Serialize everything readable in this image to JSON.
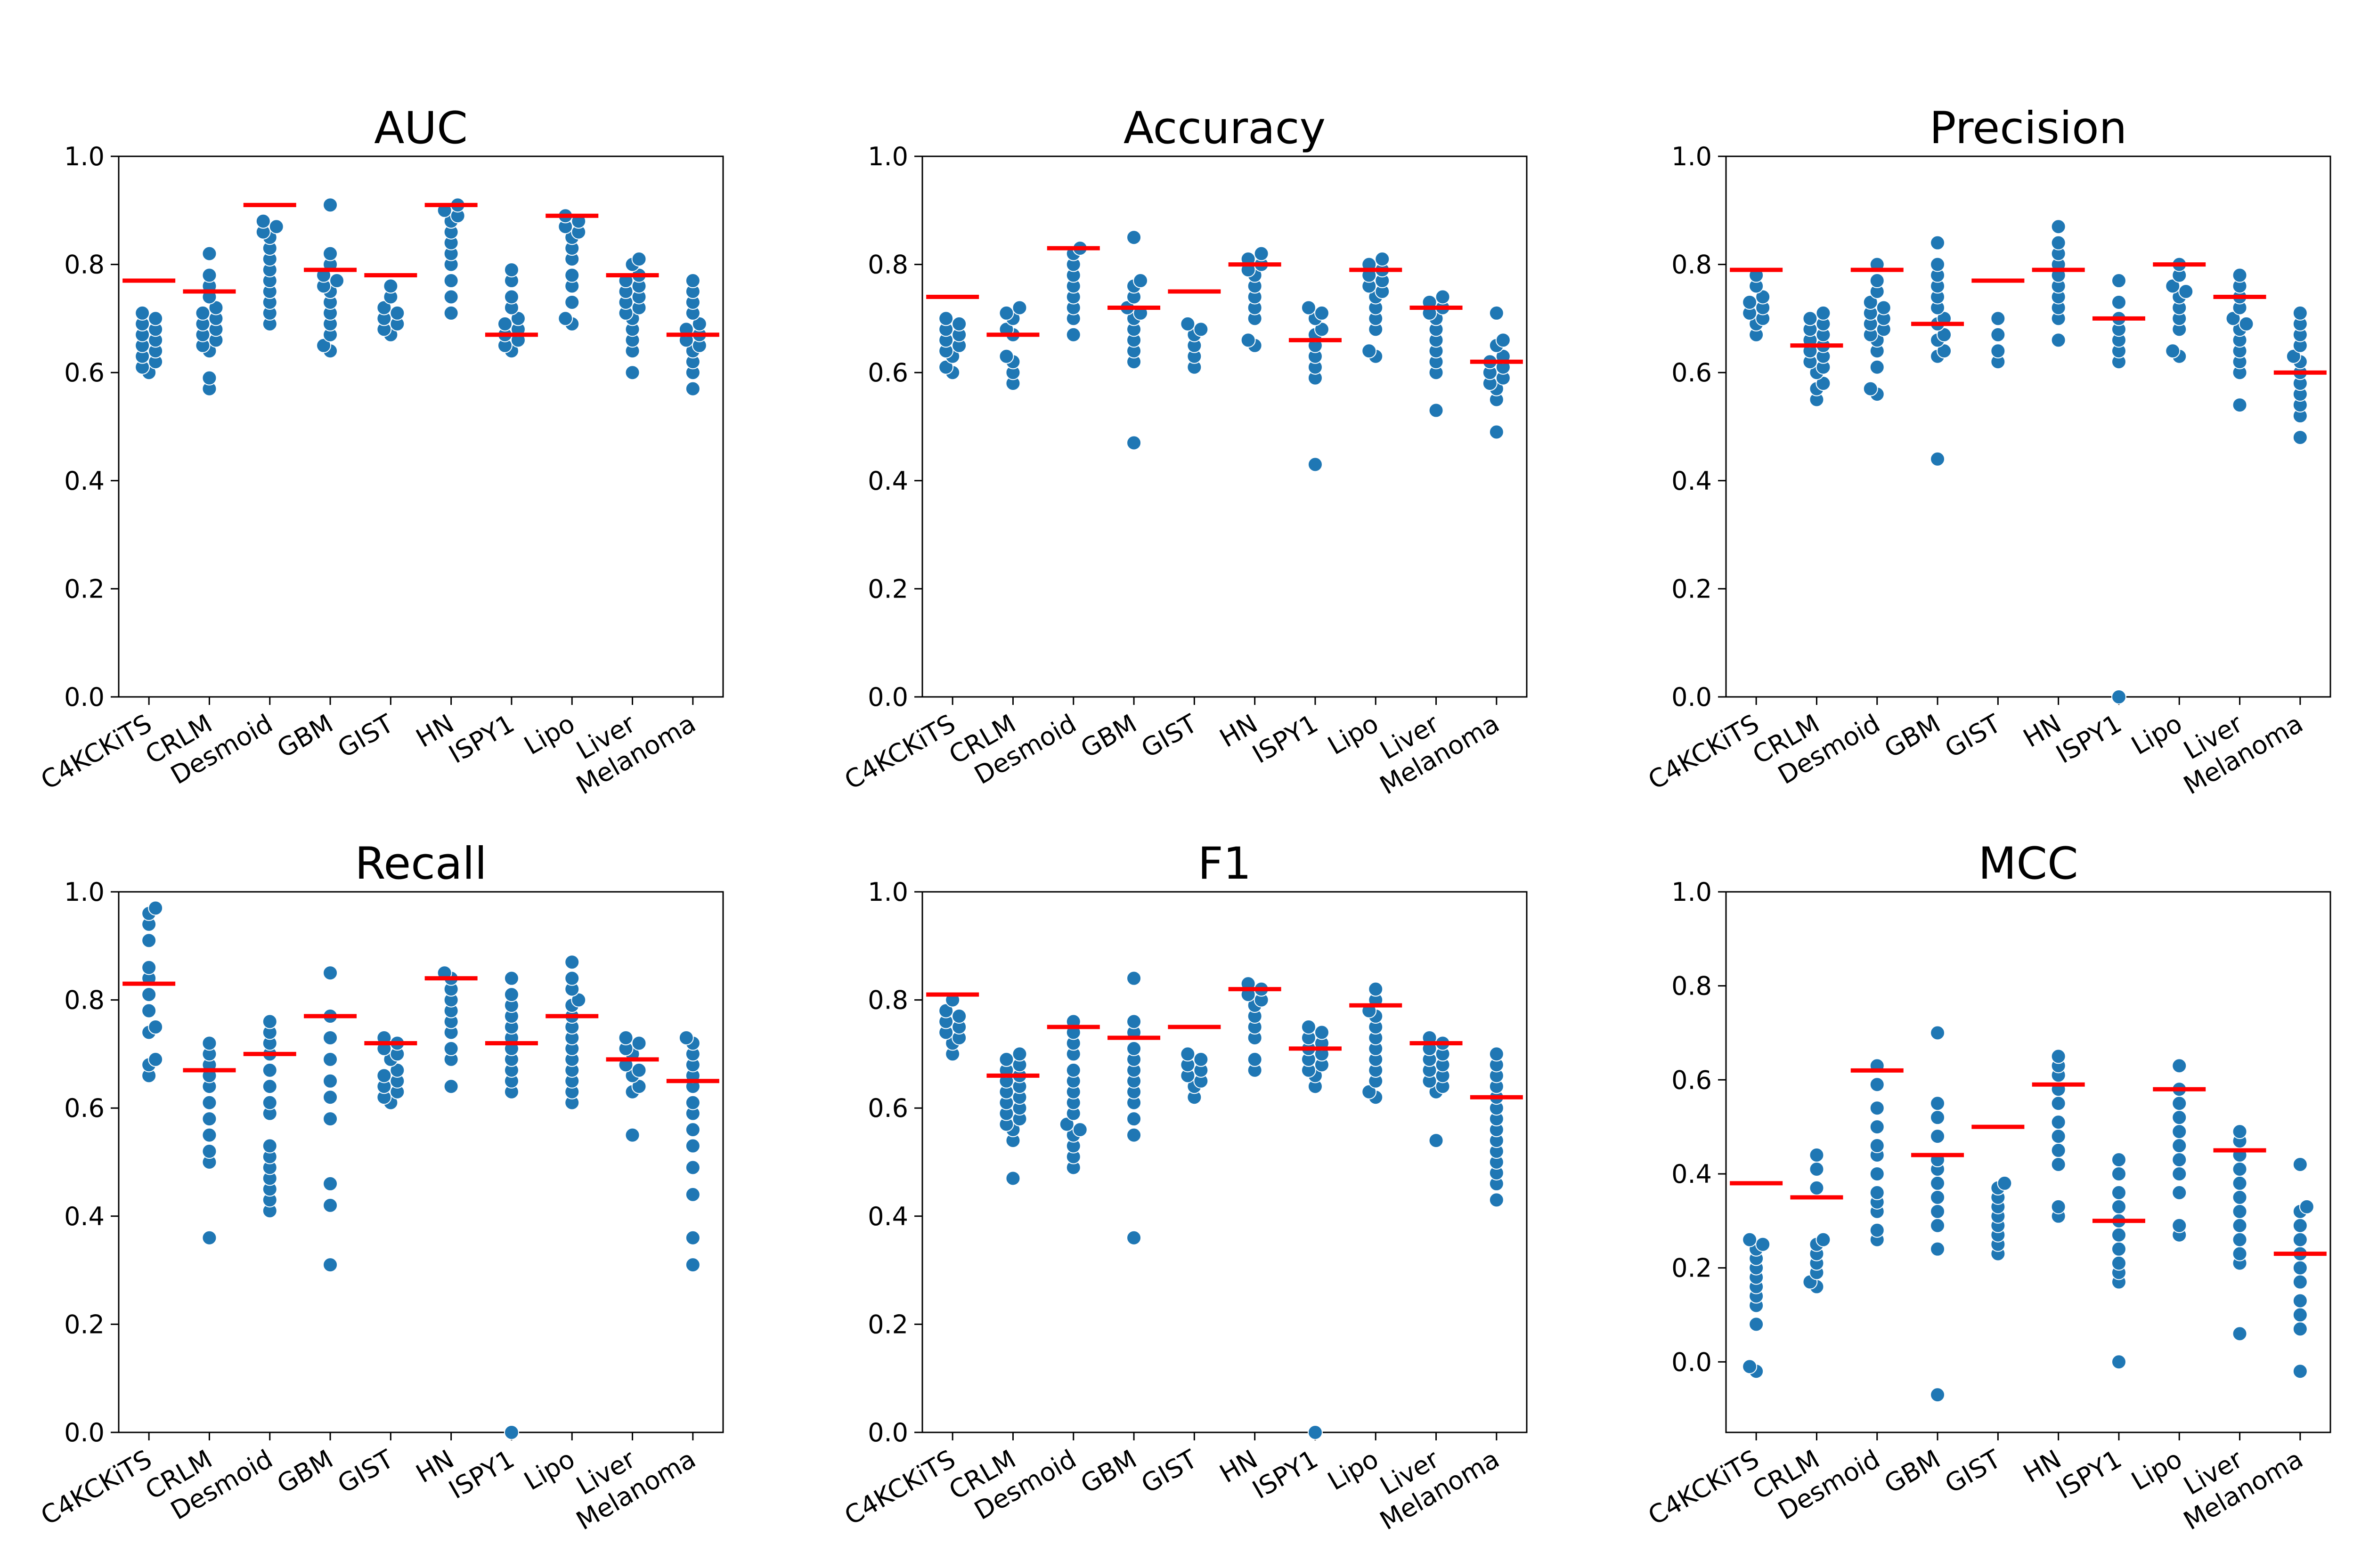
{
  "colors": {
    "points": "#1f77b4",
    "mean_line": "#ff0000",
    "axis": "#000000",
    "background": "#ffffff"
  },
  "chart_data": [
    {
      "type": "scatter",
      "title": "AUC",
      "categories": [
        "C4KCKiTS",
        "CRLM",
        "Desmoid",
        "GBM",
        "GIST",
        "HN",
        "ISPY1",
        "Lipo",
        "Liver",
        "Melanoma"
      ],
      "ylim": [
        0.0,
        1.0
      ],
      "yticks": [
        "0.0",
        "0.2",
        "0.4",
        "0.6",
        "0.8",
        "1.0"
      ],
      "grid": false,
      "points": [
        [
          0.6,
          0.61,
          0.62,
          0.63,
          0.64,
          0.65,
          0.66,
          0.67,
          0.68,
          0.69,
          0.7,
          0.71
        ],
        [
          0.57,
          0.59,
          0.64,
          0.65,
          0.66,
          0.67,
          0.68,
          0.69,
          0.7,
          0.71,
          0.72,
          0.74,
          0.76,
          0.78,
          0.82
        ],
        [
          0.69,
          0.71,
          0.73,
          0.75,
          0.77,
          0.79,
          0.81,
          0.83,
          0.85,
          0.86,
          0.87,
          0.88
        ],
        [
          0.64,
          0.65,
          0.67,
          0.69,
          0.71,
          0.73,
          0.75,
          0.76,
          0.77,
          0.78,
          0.8,
          0.82,
          0.91
        ],
        [
          0.67,
          0.68,
          0.69,
          0.7,
          0.71,
          0.72,
          0.74,
          0.76
        ],
        [
          0.71,
          0.74,
          0.77,
          0.8,
          0.82,
          0.84,
          0.86,
          0.88,
          0.89,
          0.9,
          0.91
        ],
        [
          0.64,
          0.65,
          0.66,
          0.67,
          0.68,
          0.69,
          0.7,
          0.72,
          0.74,
          0.77,
          0.79
        ],
        [
          0.69,
          0.7,
          0.73,
          0.76,
          0.78,
          0.81,
          0.83,
          0.85,
          0.86,
          0.87,
          0.88,
          0.89
        ],
        [
          0.6,
          0.64,
          0.66,
          0.68,
          0.7,
          0.71,
          0.72,
          0.73,
          0.74,
          0.75,
          0.76,
          0.77,
          0.78,
          0.8,
          0.81
        ],
        [
          0.57,
          0.6,
          0.62,
          0.64,
          0.65,
          0.66,
          0.67,
          0.68,
          0.69,
          0.71,
          0.73,
          0.75,
          0.77
        ]
      ],
      "means": [
        0.77,
        0.75,
        0.91,
        0.79,
        0.78,
        0.91,
        0.67,
        0.89,
        0.78,
        0.67
      ]
    },
    {
      "type": "scatter",
      "title": "Accuracy",
      "categories": [
        "C4KCKiTS",
        "CRLM",
        "Desmoid",
        "GBM",
        "GIST",
        "HN",
        "ISPY1",
        "Lipo",
        "Liver",
        "Melanoma"
      ],
      "ylim": [
        0.0,
        1.0
      ],
      "yticks": [
        "0.0",
        "0.2",
        "0.4",
        "0.6",
        "0.8",
        "1.0"
      ],
      "grid": false,
      "points": [
        [
          0.6,
          0.61,
          0.63,
          0.64,
          0.65,
          0.66,
          0.67,
          0.68,
          0.69,
          0.7
        ],
        [
          0.58,
          0.6,
          0.62,
          0.63,
          0.67,
          0.68,
          0.7,
          0.71,
          0.72
        ],
        [
          0.67,
          0.7,
          0.72,
          0.74,
          0.76,
          0.78,
          0.8,
          0.82,
          0.83
        ],
        [
          0.47,
          0.62,
          0.64,
          0.66,
          0.68,
          0.7,
          0.71,
          0.72,
          0.74,
          0.76,
          0.77,
          0.85
        ],
        [
          0.61,
          0.63,
          0.65,
          0.67,
          0.68,
          0.69
        ],
        [
          0.65,
          0.66,
          0.7,
          0.72,
          0.74,
          0.76,
          0.78,
          0.79,
          0.8,
          0.81,
          0.82
        ],
        [
          0.43,
          0.59,
          0.61,
          0.63,
          0.65,
          0.67,
          0.68,
          0.7,
          0.71,
          0.72
        ],
        [
          0.63,
          0.64,
          0.68,
          0.7,
          0.72,
          0.74,
          0.75,
          0.76,
          0.77,
          0.78,
          0.79,
          0.8,
          0.81
        ],
        [
          0.53,
          0.6,
          0.62,
          0.64,
          0.66,
          0.68,
          0.7,
          0.71,
          0.72,
          0.73,
          0.74
        ],
        [
          0.49,
          0.55,
          0.57,
          0.58,
          0.59,
          0.6,
          0.61,
          0.62,
          0.63,
          0.65,
          0.66,
          0.71
        ]
      ],
      "means": [
        0.74,
        0.67,
        0.83,
        0.72,
        0.75,
        0.8,
        0.66,
        0.79,
        0.72,
        0.62
      ]
    },
    {
      "type": "scatter",
      "title": "Precision",
      "categories": [
        "C4KCKiTS",
        "CRLM",
        "Desmoid",
        "GBM",
        "GIST",
        "HN",
        "ISPY1",
        "Lipo",
        "Liver",
        "Melanoma"
      ],
      "ylim": [
        0.0,
        1.0
      ],
      "yticks": [
        "0.0",
        "0.2",
        "0.4",
        "0.6",
        "0.8",
        "1.0"
      ],
      "grid": false,
      "points": [
        [
          0.67,
          0.69,
          0.7,
          0.71,
          0.72,
          0.73,
          0.74,
          0.76,
          0.78
        ],
        [
          0.55,
          0.57,
          0.58,
          0.6,
          0.61,
          0.62,
          0.63,
          0.64,
          0.65,
          0.66,
          0.67,
          0.68,
          0.69,
          0.7,
          0.71
        ],
        [
          0.56,
          0.57,
          0.61,
          0.64,
          0.66,
          0.67,
          0.68,
          0.69,
          0.7,
          0.71,
          0.72,
          0.73,
          0.75,
          0.77,
          0.8
        ],
        [
          0.44,
          0.63,
          0.64,
          0.66,
          0.67,
          0.69,
          0.7,
          0.72,
          0.74,
          0.76,
          0.78,
          0.8,
          0.84
        ],
        [
          0.62,
          0.64,
          0.67,
          0.7
        ],
        [
          0.66,
          0.7,
          0.72,
          0.74,
          0.76,
          0.78,
          0.8,
          0.82,
          0.84,
          0.87
        ],
        [
          0.0,
          0.62,
          0.64,
          0.66,
          0.68,
          0.7,
          0.73,
          0.77
        ],
        [
          0.63,
          0.64,
          0.68,
          0.7,
          0.72,
          0.74,
          0.75,
          0.76,
          0.78,
          0.8
        ],
        [
          0.54,
          0.6,
          0.62,
          0.64,
          0.66,
          0.68,
          0.69,
          0.7,
          0.72,
          0.74,
          0.76,
          0.78
        ],
        [
          0.48,
          0.52,
          0.54,
          0.56,
          0.58,
          0.6,
          0.62,
          0.63,
          0.65,
          0.67,
          0.69,
          0.71
        ]
      ],
      "means": [
        0.79,
        0.65,
        0.79,
        0.69,
        0.77,
        0.79,
        0.7,
        0.8,
        0.74,
        0.6
      ]
    },
    {
      "type": "scatter",
      "title": "Recall",
      "categories": [
        "C4KCKiTS",
        "CRLM",
        "Desmoid",
        "GBM",
        "GIST",
        "HN",
        "ISPY1",
        "Lipo",
        "Liver",
        "Melanoma"
      ],
      "ylim": [
        0.0,
        1.0
      ],
      "yticks": [
        "0.0",
        "0.2",
        "0.4",
        "0.6",
        "0.8",
        "1.0"
      ],
      "grid": false,
      "points": [
        [
          0.66,
          0.68,
          0.69,
          0.74,
          0.75,
          0.78,
          0.81,
          0.84,
          0.86,
          0.91,
          0.94,
          0.96,
          0.97
        ],
        [
          0.36,
          0.5,
          0.52,
          0.55,
          0.58,
          0.61,
          0.64,
          0.66,
          0.68,
          0.7,
          0.72
        ],
        [
          0.41,
          0.43,
          0.45,
          0.47,
          0.49,
          0.51,
          0.53,
          0.59,
          0.61,
          0.64,
          0.67,
          0.7,
          0.72,
          0.74,
          0.76
        ],
        [
          0.31,
          0.42,
          0.46,
          0.58,
          0.62,
          0.65,
          0.69,
          0.73,
          0.77,
          0.85
        ],
        [
          0.61,
          0.62,
          0.63,
          0.64,
          0.65,
          0.66,
          0.67,
          0.69,
          0.7,
          0.71,
          0.72,
          0.73
        ],
        [
          0.64,
          0.69,
          0.71,
          0.74,
          0.76,
          0.78,
          0.8,
          0.82,
          0.84,
          0.85
        ],
        [
          0.0,
          0.63,
          0.65,
          0.67,
          0.69,
          0.71,
          0.73,
          0.75,
          0.77,
          0.79,
          0.81,
          0.84
        ],
        [
          0.61,
          0.63,
          0.65,
          0.67,
          0.69,
          0.71,
          0.73,
          0.75,
          0.77,
          0.79,
          0.8,
          0.82,
          0.84,
          0.87
        ],
        [
          0.55,
          0.63,
          0.64,
          0.66,
          0.67,
          0.68,
          0.7,
          0.71,
          0.72,
          0.73
        ],
        [
          0.31,
          0.36,
          0.44,
          0.49,
          0.53,
          0.56,
          0.59,
          0.61,
          0.64,
          0.66,
          0.68,
          0.7,
          0.72,
          0.73
        ]
      ],
      "means": [
        0.83,
        0.67,
        0.7,
        0.77,
        0.72,
        0.84,
        0.72,
        0.77,
        0.69,
        0.65
      ]
    },
    {
      "type": "scatter",
      "title": "F1",
      "categories": [
        "C4KCKiTS",
        "CRLM",
        "Desmoid",
        "GBM",
        "GIST",
        "HN",
        "ISPY1",
        "Lipo",
        "Liver",
        "Melanoma"
      ],
      "ylim": [
        0.0,
        1.0
      ],
      "yticks": [
        "0.0",
        "0.2",
        "0.4",
        "0.6",
        "0.8",
        "1.0"
      ],
      "grid": false,
      "points": [
        [
          0.7,
          0.72,
          0.73,
          0.74,
          0.75,
          0.76,
          0.77,
          0.78,
          0.8
        ],
        [
          0.47,
          0.54,
          0.56,
          0.57,
          0.58,
          0.59,
          0.6,
          0.61,
          0.62,
          0.63,
          0.64,
          0.65,
          0.66,
          0.67,
          0.68,
          0.69,
          0.7
        ],
        [
          0.49,
          0.51,
          0.53,
          0.55,
          0.56,
          0.57,
          0.59,
          0.61,
          0.63,
          0.65,
          0.67,
          0.7,
          0.72,
          0.74,
          0.76
        ],
        [
          0.36,
          0.55,
          0.58,
          0.61,
          0.63,
          0.65,
          0.67,
          0.69,
          0.71,
          0.74,
          0.76,
          0.84
        ],
        [
          0.62,
          0.64,
          0.65,
          0.66,
          0.67,
          0.68,
          0.69,
          0.7
        ],
        [
          0.67,
          0.69,
          0.73,
          0.75,
          0.77,
          0.79,
          0.8,
          0.81,
          0.82,
          0.83
        ],
        [
          0.0,
          0.64,
          0.66,
          0.67,
          0.68,
          0.69,
          0.7,
          0.71,
          0.72,
          0.73,
          0.74,
          0.75
        ],
        [
          0.62,
          0.63,
          0.65,
          0.67,
          0.69,
          0.71,
          0.73,
          0.75,
          0.77,
          0.78,
          0.8,
          0.82
        ],
        [
          0.54,
          0.63,
          0.64,
          0.65,
          0.66,
          0.67,
          0.68,
          0.69,
          0.7,
          0.71,
          0.72,
          0.73
        ],
        [
          0.43,
          0.46,
          0.48,
          0.5,
          0.52,
          0.54,
          0.56,
          0.58,
          0.6,
          0.62,
          0.64,
          0.66,
          0.68,
          0.7
        ]
      ],
      "means": [
        0.81,
        0.66,
        0.75,
        0.73,
        0.75,
        0.82,
        0.71,
        0.79,
        0.72,
        0.62
      ]
    },
    {
      "type": "scatter",
      "title": "MCC",
      "categories": [
        "C4KCKiTS",
        "CRLM",
        "Desmoid",
        "GBM",
        "GIST",
        "HN",
        "ISPY1",
        "Lipo",
        "Liver",
        "Melanoma"
      ],
      "ylim": [
        -0.15,
        1.0
      ],
      "yticks": [
        "0.0",
        "0.2",
        "0.4",
        "0.6",
        "0.8",
        "1.0"
      ],
      "grid": false,
      "points": [
        [
          -0.02,
          -0.01,
          0.08,
          0.12,
          0.14,
          0.16,
          0.18,
          0.2,
          0.22,
          0.24,
          0.25,
          0.26
        ],
        [
          0.16,
          0.17,
          0.19,
          0.21,
          0.23,
          0.25,
          0.26,
          0.37,
          0.41,
          0.44
        ],
        [
          0.26,
          0.28,
          0.32,
          0.34,
          0.36,
          0.4,
          0.44,
          0.46,
          0.5,
          0.54,
          0.59,
          0.63
        ],
        [
          -0.07,
          0.24,
          0.29,
          0.32,
          0.35,
          0.38,
          0.41,
          0.43,
          0.48,
          0.52,
          0.55,
          0.7
        ],
        [
          0.23,
          0.25,
          0.27,
          0.29,
          0.31,
          0.33,
          0.35,
          0.37,
          0.38
        ],
        [
          0.31,
          0.33,
          0.42,
          0.45,
          0.48,
          0.51,
          0.55,
          0.58,
          0.61,
          0.63,
          0.65
        ],
        [
          0.0,
          0.17,
          0.19,
          0.21,
          0.24,
          0.27,
          0.3,
          0.33,
          0.36,
          0.4,
          0.43
        ],
        [
          0.27,
          0.29,
          0.36,
          0.4,
          0.43,
          0.46,
          0.49,
          0.52,
          0.55,
          0.58,
          0.63
        ],
        [
          0.06,
          0.21,
          0.23,
          0.26,
          0.29,
          0.32,
          0.35,
          0.38,
          0.41,
          0.44,
          0.47,
          0.49
        ],
        [
          -0.02,
          0.07,
          0.1,
          0.13,
          0.17,
          0.2,
          0.23,
          0.26,
          0.29,
          0.32,
          0.33,
          0.42
        ]
      ],
      "means": [
        0.38,
        0.35,
        0.62,
        0.44,
        0.5,
        0.59,
        0.3,
        0.58,
        0.45,
        0.23
      ]
    }
  ]
}
